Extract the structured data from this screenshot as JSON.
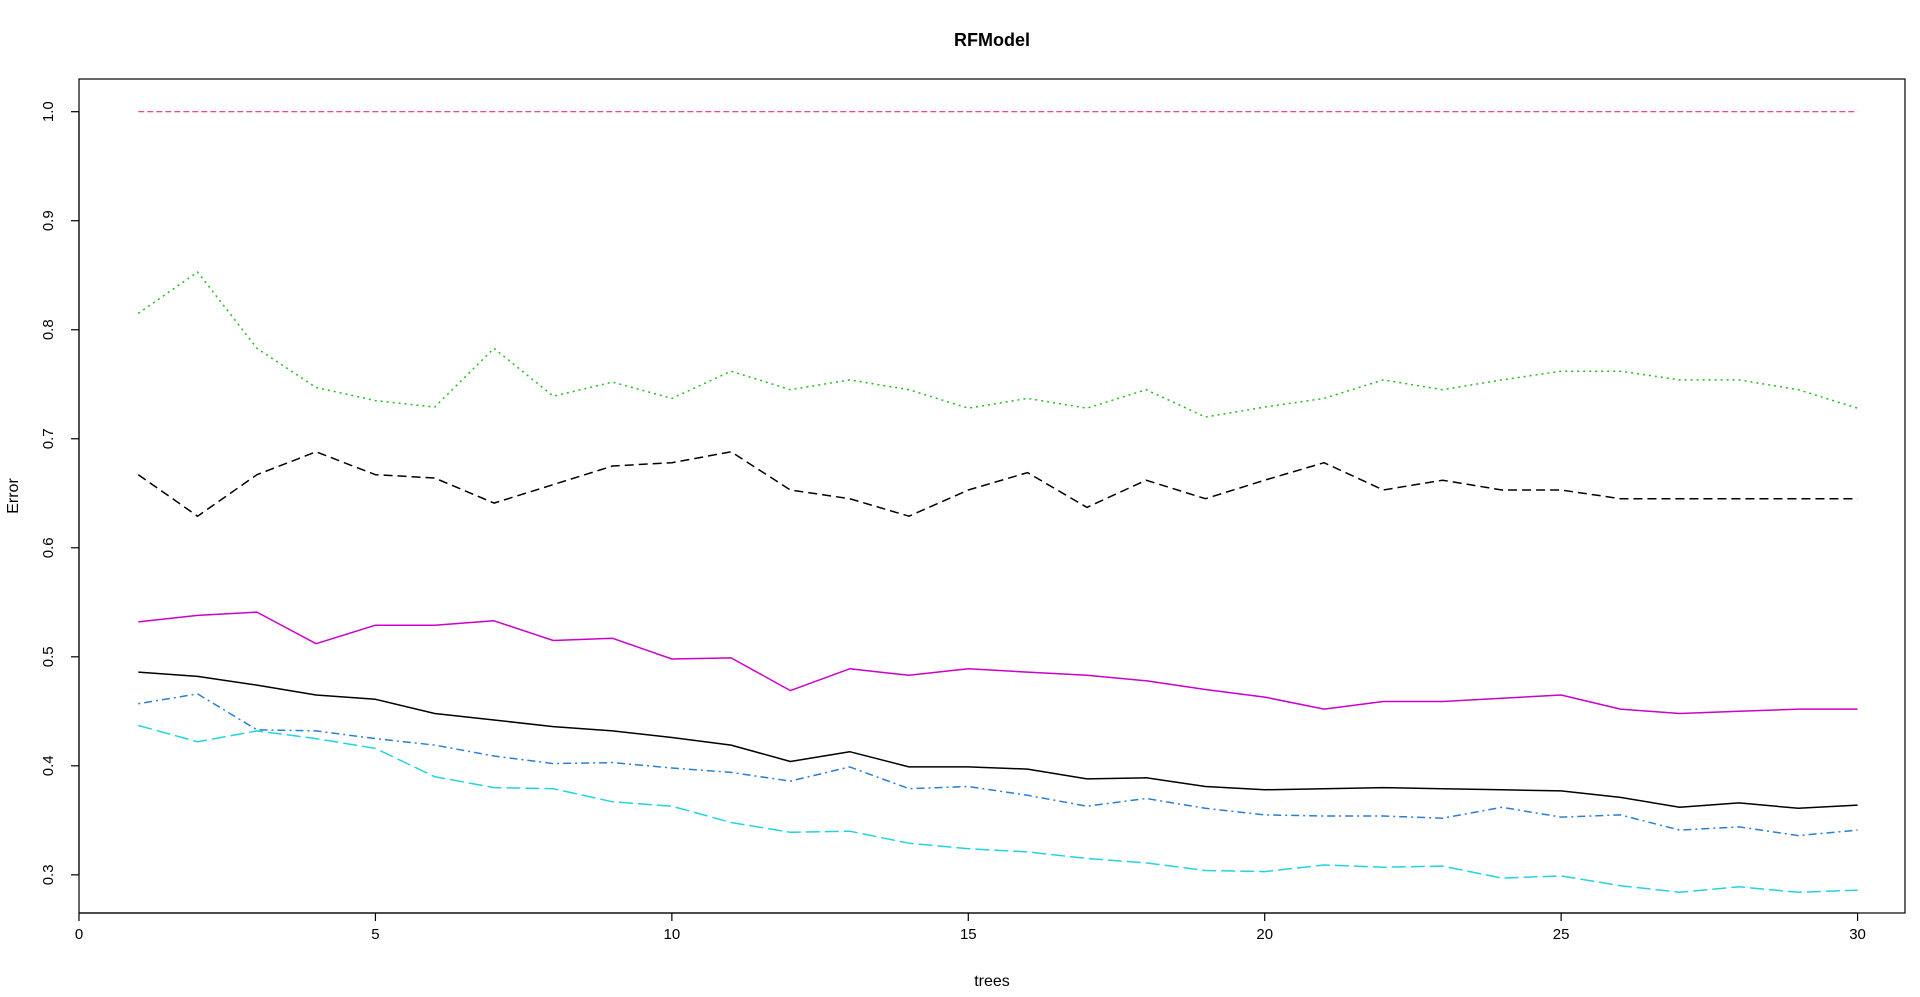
{
  "chart_data": {
    "type": "line",
    "title": "RFModel",
    "xlabel": "trees",
    "ylabel": "Error",
    "xlim": [
      0,
      30.8
    ],
    "ylim": [
      0.265,
      1.03
    ],
    "xticks": [
      0,
      5,
      10,
      15,
      20,
      25,
      30
    ],
    "yticks": [
      0.3,
      0.4,
      0.5,
      0.6,
      0.7,
      0.8,
      0.9,
      1.0
    ],
    "ytick_labels": [
      "0.3",
      "0.4",
      "0.5",
      "0.6",
      "0.7",
      "0.8",
      "0.9",
      "1.0"
    ],
    "grid": false,
    "x": [
      1,
      2,
      3,
      4,
      5,
      6,
      7,
      8,
      9,
      10,
      11,
      12,
      13,
      14,
      15,
      16,
      17,
      18,
      19,
      20,
      21,
      22,
      23,
      24,
      25,
      26,
      27,
      28,
      29,
      30
    ],
    "series": [
      {
        "color": "#000000",
        "dash": "solid",
        "values": [
          0.486,
          0.482,
          0.474,
          0.465,
          0.461,
          0.448,
          0.442,
          0.436,
          0.432,
          0.426,
          0.419,
          0.404,
          0.413,
          0.399,
          0.399,
          0.397,
          0.388,
          0.389,
          0.381,
          0.378,
          0.379,
          0.38,
          0.379,
          0.378,
          0.377,
          0.371,
          0.362,
          0.366,
          0.361,
          0.364
        ]
      },
      {
        "color": "#000000",
        "dash": "dashed",
        "values": [
          0.667,
          0.629,
          0.667,
          0.688,
          0.667,
          0.664,
          0.641,
          0.658,
          0.675,
          0.678,
          0.688,
          0.653,
          0.645,
          0.629,
          0.653,
          0.669,
          0.637,
          0.662,
          0.645,
          0.662,
          0.678,
          0.653,
          0.662,
          0.653,
          0.653,
          0.645,
          0.645,
          0.645,
          0.645,
          0.645
        ]
      },
      {
        "color": "#E6308A",
        "dash": "dashed-thin",
        "values": [
          1.0,
          1.0,
          1.0,
          1.0,
          1.0,
          1.0,
          1.0,
          1.0,
          1.0,
          1.0,
          1.0,
          1.0,
          1.0,
          1.0,
          1.0,
          1.0,
          1.0,
          1.0,
          1.0,
          1.0,
          1.0,
          1.0,
          1.0,
          1.0,
          1.0,
          1.0,
          1.0,
          1.0,
          1.0,
          1.0
        ]
      },
      {
        "color": "#22BB22",
        "dash": "dotted",
        "values": [
          0.815,
          0.853,
          0.783,
          0.747,
          0.735,
          0.729,
          0.783,
          0.739,
          0.752,
          0.737,
          0.762,
          0.745,
          0.754,
          0.745,
          0.728,
          0.737,
          0.728,
          0.745,
          0.72,
          0.729,
          0.737,
          0.754,
          0.745,
          0.754,
          0.762,
          0.762,
          0.754,
          0.754,
          0.745,
          0.728
        ]
      },
      {
        "color": "#2A7FD4",
        "dash": "dotdash",
        "values": [
          0.457,
          0.466,
          0.433,
          0.432,
          0.425,
          0.419,
          0.409,
          0.402,
          0.403,
          0.398,
          0.394,
          0.386,
          0.399,
          0.379,
          0.381,
          0.373,
          0.363,
          0.37,
          0.361,
          0.355,
          0.354,
          0.354,
          0.352,
          0.362,
          0.353,
          0.355,
          0.341,
          0.344,
          0.336,
          0.341
        ]
      },
      {
        "color": "#CC00CC",
        "dash": "solid",
        "values": [
          0.532,
          0.538,
          0.541,
          0.512,
          0.529,
          0.529,
          0.533,
          0.515,
          0.517,
          0.498,
          0.499,
          0.469,
          0.489,
          0.483,
          0.489,
          0.486,
          0.483,
          0.478,
          0.47,
          0.463,
          0.452,
          0.459,
          0.459,
          0.462,
          0.465,
          0.452,
          0.448,
          0.45,
          0.452,
          0.452
        ]
      },
      {
        "color": "#22D4E0",
        "dash": "longdash",
        "values": [
          0.437,
          0.422,
          0.432,
          0.425,
          0.416,
          0.39,
          0.38,
          0.379,
          0.367,
          0.363,
          0.348,
          0.339,
          0.34,
          0.329,
          0.324,
          0.321,
          0.315,
          0.311,
          0.304,
          0.303,
          0.309,
          0.307,
          0.308,
          0.297,
          0.299,
          0.29,
          0.284,
          0.289,
          0.284,
          0.286
        ]
      }
    ]
  }
}
